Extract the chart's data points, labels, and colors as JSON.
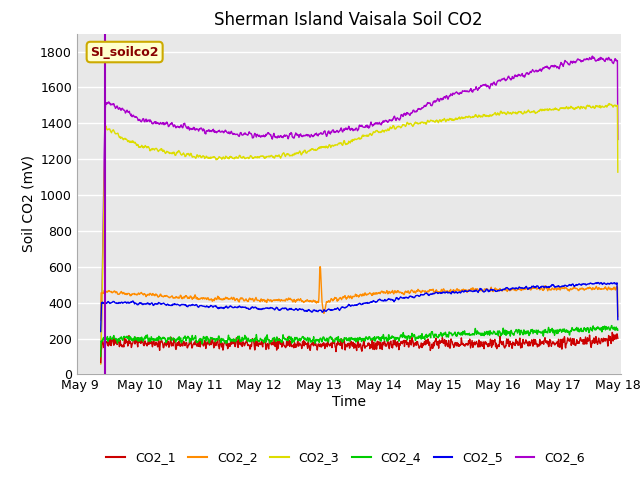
{
  "title": "Sherman Island Vaisala Soil CO2",
  "xlabel": "Time",
  "ylabel": "Soil CO2 (mV)",
  "ylim": [
    0,
    1900
  ],
  "yticks": [
    0,
    200,
    400,
    600,
    800,
    1000,
    1200,
    1400,
    1600,
    1800
  ],
  "xlim": [
    8.95,
    18.05
  ],
  "xtick_days": [
    9,
    10,
    11,
    12,
    13,
    14,
    15,
    16,
    17,
    18
  ],
  "xtick_labels": [
    "May 9",
    "May 10",
    "May 11",
    "May 12",
    "May 13",
    "May 14",
    "May 15",
    "May 16",
    "May 17",
    "May 18"
  ],
  "series_colors": {
    "CO2_1": "#cc0000",
    "CO2_2": "#ff8c00",
    "CO2_3": "#dddd00",
    "CO2_4": "#00cc00",
    "CO2_5": "#0000ee",
    "CO2_6": "#aa00cc"
  },
  "vline_color": "#9900bb",
  "legend_label": "SI_soilco2",
  "legend_box_color": "#ffffcc",
  "legend_box_edge": "#ccaa00",
  "legend_text_color": "#880000",
  "plot_bg_color": "#e8e8e8",
  "grid_color": "#ffffff",
  "title_fontsize": 12,
  "axis_label_fontsize": 10,
  "tick_fontsize": 9
}
